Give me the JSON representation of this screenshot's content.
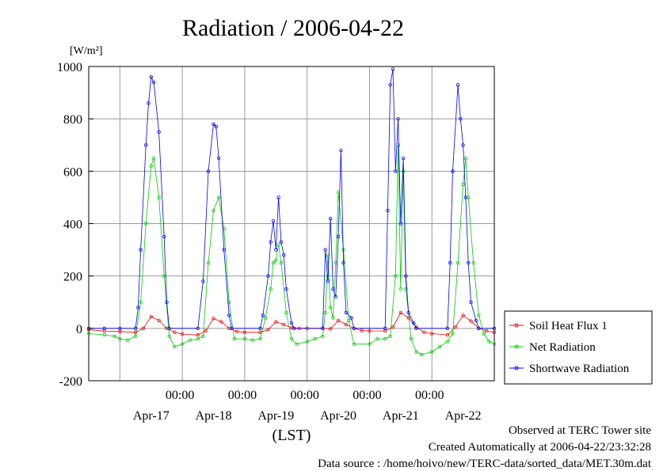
{
  "chart_data": {
    "type": "line",
    "title": "Radiation / 2006-04-22",
    "ylabel_unit": "[W/m²]",
    "xlabel": "(LST)",
    "ylim": [
      -200,
      1000
    ],
    "yticks": [
      -200,
      0,
      200,
      400,
      600,
      800,
      1000
    ],
    "ytick_labels": [
      "-200",
      "0",
      "200",
      "400",
      "600",
      "800",
      "1000"
    ],
    "x_start": "2006-04-16 12:00",
    "x_end": "2006-04-22 24:00",
    "x_tick_labels": [
      "00:00",
      "00:00",
      "00:00",
      "00:00",
      "00:00"
    ],
    "date_labels": [
      "Apr-17",
      "Apr-18",
      "Apr-19",
      "Apr-20",
      "Apr-21",
      "Apr-22"
    ],
    "grid": true,
    "legend_position": "right",
    "series": [
      {
        "name": "Soil Heat Flux 1",
        "color": "#ff0000",
        "x": [
          "04-16 12:00",
          "04-16 18:00",
          "04-17 00:00",
          "04-17 06:00",
          "04-17 09:00",
          "04-17 12:00",
          "04-17 15:00",
          "04-17 18:00",
          "04-17 21:00",
          "04-18 00:00",
          "04-18 06:00",
          "04-18 09:00",
          "04-18 12:00",
          "04-18 15:00",
          "04-18 18:00",
          "04-18 21:00",
          "04-19 00:00",
          "04-19 06:00",
          "04-19 09:00",
          "04-19 12:00",
          "04-19 15:00",
          "04-19 18:00",
          "04-19 21:00",
          "04-20 00:00",
          "04-20 06:00",
          "04-20 09:00",
          "04-20 12:00",
          "04-20 15:00",
          "04-20 18:00",
          "04-20 21:00",
          "04-21 00:00",
          "04-21 06:00",
          "04-21 09:00",
          "04-21 12:00",
          "04-21 15:00",
          "04-21 18:00",
          "04-21 21:00",
          "04-22 00:00",
          "04-22 06:00",
          "04-22 09:00",
          "04-22 12:00",
          "04-22 15:00",
          "04-22 18:00",
          "04-22 21:00",
          "04-22 24:00"
        ],
        "y": [
          -5,
          -10,
          -12,
          -15,
          0,
          45,
          30,
          0,
          -15,
          -22,
          -25,
          -10,
          38,
          25,
          0,
          -12,
          -15,
          -15,
          -5,
          25,
          15,
          2,
          0,
          0,
          0,
          -2,
          30,
          15,
          0,
          -8,
          -10,
          -10,
          5,
          60,
          40,
          5,
          -15,
          -20,
          -25,
          5,
          50,
          28,
          0,
          -10,
          -15
        ]
      },
      {
        "name": "Net Radiation",
        "color": "#00cc00",
        "x": [
          "04-16 12:00",
          "04-16 18:00",
          "04-16 22:00",
          "04-17 00:00",
          "04-17 03:00",
          "04-17 06:00",
          "04-17 08:00",
          "04-17 10:00",
          "04-17 12:00",
          "04-17 13:00",
          "04-17 15:00",
          "04-17 17:00",
          "04-17 19:00",
          "04-17 21:00",
          "04-18 00:00",
          "04-18 03:00",
          "04-18 06:00",
          "04-18 08:00",
          "04-18 10:00",
          "04-18 12:00",
          "04-18 14:00",
          "04-18 16:00",
          "04-18 18:00",
          "04-18 20:00",
          "04-19 00:00",
          "04-19 03:00",
          "04-19 06:00",
          "04-19 08:00",
          "04-19 10:00",
          "04-19 11:00",
          "04-19 12:00",
          "04-19 13:00",
          "04-19 14:00",
          "04-19 16:00",
          "04-19 18:00",
          "04-19 20:00",
          "04-20 00:00",
          "04-20 03:00",
          "04-20 06:00",
          "04-20 07:00",
          "04-20 08:00",
          "04-20 09:00",
          "04-20 10:00",
          "04-20 11:00",
          "04-20 12:00",
          "04-20 14:00",
          "04-20 16:00",
          "04-20 18:00",
          "04-21 00:00",
          "04-21 03:00",
          "04-21 06:00",
          "04-21 08:00",
          "04-21 10:00",
          "04-21 11:00",
          "04-21 12:00",
          "04-21 13:00",
          "04-21 14:00",
          "04-21 16:00",
          "04-21 18:00",
          "04-21 20:00",
          "04-22 00:00",
          "04-22 03:00",
          "04-22 06:00",
          "04-22 08:00",
          "04-22 10:00",
          "04-22 12:00",
          "04-22 13:00",
          "04-22 14:00",
          "04-22 16:00",
          "04-22 18:00",
          "04-22 20:00",
          "04-22 22:00",
          "04-22 24:00"
        ],
        "y": [
          -20,
          -25,
          -30,
          -40,
          -45,
          -30,
          100,
          400,
          620,
          650,
          500,
          200,
          -30,
          -70,
          -60,
          -45,
          -40,
          -30,
          250,
          450,
          500,
          380,
          100,
          -40,
          -40,
          -45,
          -40,
          40,
          150,
          250,
          260,
          320,
          250,
          60,
          -40,
          -60,
          -50,
          -40,
          -30,
          60,
          280,
          80,
          40,
          250,
          520,
          300,
          30,
          -60,
          -60,
          -40,
          -40,
          -30,
          200,
          700,
          150,
          600,
          150,
          -40,
          -90,
          -100,
          -90,
          -70,
          -50,
          -20,
          250,
          550,
          650,
          500,
          250,
          50,
          -20,
          -50,
          -60
        ]
      },
      {
        "name": "Shortwave Radiation",
        "color": "#0000ff",
        "x": [
          "04-16 12:00",
          "04-16 18:00",
          "04-17 00:00",
          "04-17 06:00",
          "04-17 07:00",
          "04-17 08:00",
          "04-17 10:00",
          "04-17 11:00",
          "04-17 12:00",
          "04-17 13:00",
          "04-17 15:00",
          "04-17 17:00",
          "04-17 18:00",
          "04-17 19:00",
          "04-18 06:00",
          "04-18 08:00",
          "04-18 10:00",
          "04-18 12:00",
          "04-18 13:00",
          "04-18 14:00",
          "04-18 16:00",
          "04-18 18:00",
          "04-18 19:00",
          "04-19 06:00",
          "04-19 07:00",
          "04-19 09:00",
          "04-19 10:00",
          "04-19 11:00",
          "04-19 12:00",
          "04-19 13:00",
          "04-19 14:00",
          "04-19 15:00",
          "04-19 16:00",
          "04-19 18:00",
          "04-19 19:00",
          "04-20 06:00",
          "04-20 07:00",
          "04-20 08:00",
          "04-20 09:00",
          "04-20 10:00",
          "04-20 11:00",
          "04-20 12:00",
          "04-20 13:00",
          "04-20 14:00",
          "04-20 15:00",
          "04-20 17:00",
          "04-20 18:00",
          "04-21 06:00",
          "04-21 07:00",
          "04-21 08:00",
          "04-21 09:00",
          "04-21 10:00",
          "04-21 11:00",
          "04-21 12:00",
          "04-21 13:00",
          "04-21 14:00",
          "04-21 15:00",
          "04-21 17:00",
          "04-21 18:00",
          "04-22 06:00",
          "04-22 07:00",
          "04-22 08:00",
          "04-22 10:00",
          "04-22 11:00",
          "04-22 12:00",
          "04-22 13:00",
          "04-22 14:00",
          "04-22 15:00",
          "04-22 17:00",
          "04-22 18:00",
          "04-22 24:00"
        ],
        "y": [
          0,
          0,
          0,
          0,
          80,
          300,
          700,
          860,
          960,
          940,
          750,
          350,
          100,
          0,
          0,
          180,
          600,
          780,
          770,
          650,
          300,
          50,
          0,
          0,
          50,
          200,
          330,
          410,
          300,
          500,
          330,
          280,
          150,
          20,
          0,
          0,
          300,
          180,
          420,
          150,
          120,
          350,
          680,
          250,
          60,
          40,
          0,
          0,
          450,
          930,
          990,
          600,
          800,
          400,
          650,
          200,
          60,
          20,
          0,
          0,
          250,
          600,
          930,
          800,
          700,
          500,
          250,
          100,
          30,
          0,
          0
        ]
      }
    ]
  },
  "footer": {
    "line1": "Observed at TERC Tower site",
    "line2": "Created Automatically at 2006-04-22/23:32:28",
    "line3": "Data source : /home/hoivo/new/TERC-data/sorted_data/MET.30m.dat"
  }
}
